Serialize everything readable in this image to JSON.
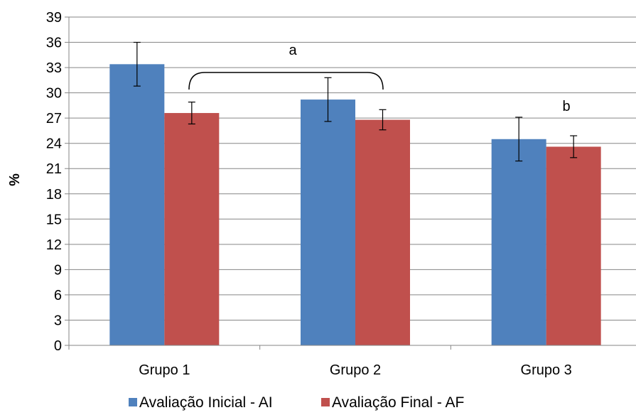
{
  "chart_data": {
    "type": "bar",
    "categories": [
      "Grupo 1",
      "Grupo 2",
      "Grupo 3"
    ],
    "series": [
      {
        "name": "Avaliação Inicial - AI",
        "color": "#4F81BD",
        "values": [
          33.4,
          29.2,
          24.5
        ],
        "error": [
          2.6,
          2.6,
          2.6
        ]
      },
      {
        "name": "Avaliação Final - AF",
        "color": "#C0504D",
        "values": [
          27.6,
          26.8,
          23.6
        ],
        "error": [
          1.3,
          1.2,
          1.3
        ]
      }
    ],
    "ylabel": "%",
    "ylim": [
      0,
      39
    ],
    "yticks": [
      0,
      3,
      6,
      9,
      12,
      15,
      18,
      21,
      24,
      27,
      30,
      33,
      36,
      39
    ],
    "grid": true,
    "legend_position": "bottom",
    "annotations": [
      {
        "text": "a",
        "note": "bracket linking Grupo 1 and Grupo 2 final bars"
      },
      {
        "text": "b",
        "note": "above Grupo 3"
      }
    ]
  }
}
